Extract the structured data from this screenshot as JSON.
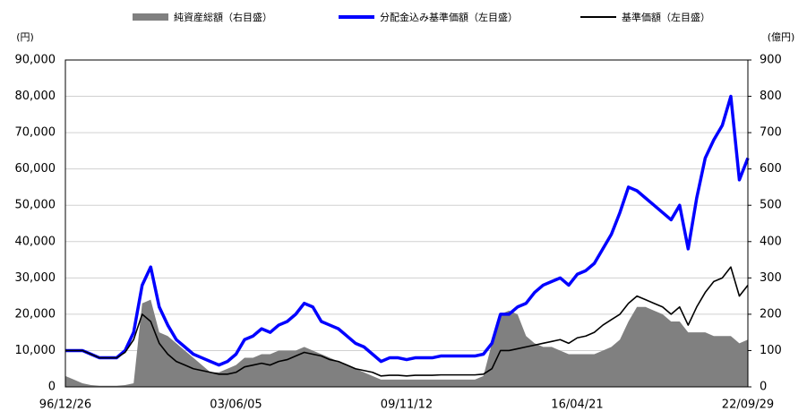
{
  "chart_data": {
    "type": "line",
    "legend_position": "top",
    "ylabel": "(円)",
    "y2label": "(億円)",
    "categories": [
      "96/12/26",
      null,
      null,
      null,
      null,
      null,
      null,
      null,
      null,
      null,
      null,
      null,
      null,
      null,
      null,
      null,
      null,
      null,
      null,
      null,
      "03/06/05",
      null,
      null,
      null,
      null,
      null,
      null,
      null,
      null,
      null,
      null,
      null,
      null,
      null,
      null,
      null,
      null,
      null,
      null,
      null,
      "09/11/12",
      null,
      null,
      null,
      null,
      null,
      null,
      null,
      null,
      null,
      null,
      null,
      null,
      null,
      null,
      null,
      null,
      null,
      null,
      null,
      "16/04/21",
      null,
      null,
      null,
      null,
      null,
      null,
      null,
      null,
      null,
      null,
      null,
      null,
      null,
      null,
      null,
      null,
      null,
      null,
      null,
      "22/09/29"
    ],
    "series": [
      {
        "name": "純資産総額（右目盛）",
        "type": "area",
        "axis": "y2",
        "color": "#808080",
        "values": [
          30,
          20,
          10,
          5,
          3,
          3,
          3,
          5,
          10,
          230,
          240,
          150,
          140,
          120,
          100,
          80,
          60,
          40,
          40,
          50,
          60,
          80,
          80,
          90,
          90,
          100,
          100,
          100,
          110,
          100,
          90,
          80,
          70,
          60,
          50,
          40,
          30,
          20,
          20,
          20,
          20,
          20,
          20,
          20,
          20,
          20,
          20,
          20,
          20,
          30,
          120,
          200,
          210,
          200,
          140,
          120,
          110,
          110,
          100,
          90,
          90,
          90,
          90,
          100,
          110,
          130,
          180,
          220,
          220,
          210,
          200,
          180,
          180,
          150,
          150,
          150,
          140,
          140,
          140,
          120,
          130
        ]
      },
      {
        "name": "分配金込み基準価額（左目盛）",
        "type": "line",
        "color": "#0000ff",
        "values": [
          10000,
          10000,
          10000,
          9000,
          8000,
          8000,
          8000,
          10000,
          15000,
          28000,
          33000,
          22000,
          17000,
          13000,
          11000,
          9000,
          8000,
          7000,
          6000,
          7000,
          9000,
          13000,
          14000,
          16000,
          15000,
          17000,
          18000,
          20000,
          23000,
          22000,
          18000,
          17000,
          16000,
          14000,
          12000,
          11000,
          9000,
          7000,
          8000,
          8000,
          7500,
          8000,
          8000,
          8000,
          8500,
          8500,
          8500,
          8500,
          8500,
          9000,
          12000,
          20000,
          20000,
          22000,
          23000,
          26000,
          28000,
          29000,
          30000,
          28000,
          31000,
          32000,
          34000,
          38000,
          42000,
          48000,
          55000,
          54000,
          52000,
          50000,
          48000,
          46000,
          50000,
          38000,
          52000,
          63000,
          68000,
          72000,
          80000,
          57000,
          63000
        ]
      },
      {
        "name": "基準価額（左目盛）",
        "type": "line",
        "color": "#000000",
        "values": [
          10000,
          10000,
          10000,
          9000,
          8000,
          8000,
          8000,
          9500,
          13000,
          20000,
          18000,
          12000,
          9000,
          7000,
          6000,
          5000,
          4500,
          4000,
          3500,
          3500,
          4000,
          5500,
          6000,
          6500,
          6000,
          7000,
          7500,
          8500,
          9500,
          9000,
          8500,
          7500,
          7000,
          6000,
          5000,
          4500,
          4000,
          3000,
          3200,
          3200,
          3000,
          3200,
          3200,
          3200,
          3300,
          3300,
          3300,
          3300,
          3300,
          3500,
          5000,
          10000,
          10000,
          10500,
          11000,
          11500,
          12000,
          12500,
          13000,
          12000,
          13500,
          14000,
          15000,
          17000,
          18500,
          20000,
          23000,
          25000,
          24000,
          23000,
          22000,
          20000,
          22000,
          17000,
          22000,
          26000,
          29000,
          30000,
          33000,
          25000,
          28000
        ]
      }
    ],
    "ylim": [
      0,
      90000
    ],
    "yticks": [
      0,
      {
        "value": 10000,
        "label": "10,000"
      },
      {
        "value": 20000,
        "label": "20,000"
      },
      {
        "value": 30000,
        "label": "30,000"
      },
      {
        "value": 40000,
        "label": "40,000"
      },
      {
        "value": 50000,
        "label": "50,000"
      },
      {
        "value": 60000,
        "label": "60,000"
      },
      {
        "value": 70000,
        "label": "70,000"
      },
      {
        "value": 80000,
        "label": "80,000"
      },
      {
        "value": 90000,
        "label": "90,000"
      }
    ],
    "y2lim": [
      0,
      900
    ],
    "y2ticks": [
      0,
      100,
      200,
      300,
      400,
      500,
      600,
      700,
      800,
      900
    ],
    "grid": true
  }
}
